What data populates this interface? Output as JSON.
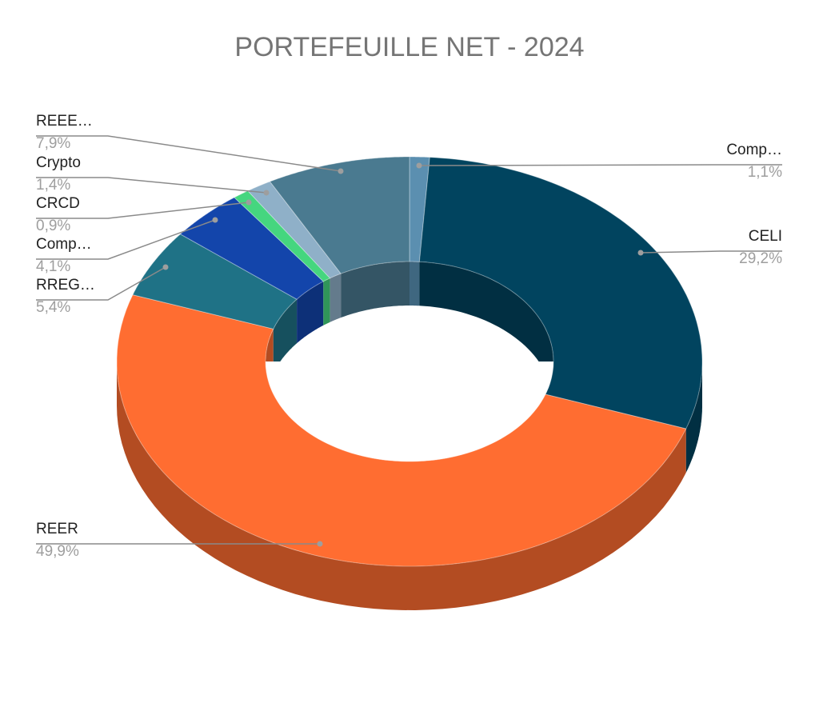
{
  "chart_data": {
    "type": "pie",
    "style": "3d-donut",
    "title": "PORTEFEUILLE NET - 2024",
    "slices": [
      {
        "label": "Comp…",
        "value": 1.1,
        "pct_label": "1,1%",
        "color": "#5b8fb0",
        "side": "#3f6780",
        "label_side": "right"
      },
      {
        "label": "CELI",
        "value": 29.2,
        "pct_label": "29,2%",
        "color": "#01445f",
        "side": "#012f42",
        "label_side": "right"
      },
      {
        "label": "REER",
        "value": 49.9,
        "pct_label": "49,9%",
        "color": "#ff6d31",
        "side": "#b34c22",
        "label_side": "left"
      },
      {
        "label": "RREG…",
        "value": 5.4,
        "pct_label": "5,4%",
        "color": "#1f7286",
        "side": "#16505e",
        "label_side": "left"
      },
      {
        "label": "Comp…",
        "value": 4.1,
        "pct_label": "4,1%",
        "color": "#1345ab",
        "side": "#0d3078",
        "label_side": "left"
      },
      {
        "label": "CRCD",
        "value": 0.9,
        "pct_label": "0,9%",
        "color": "#45d67f",
        "side": "#309659",
        "label_side": "left"
      },
      {
        "label": "Crypto",
        "value": 1.4,
        "pct_label": "1,4%",
        "color": "#8fb0c8",
        "side": "#647b8c",
        "label_side": "left"
      },
      {
        "label": "REEE…",
        "value": 7.9,
        "pct_label": "7,9%",
        "color": "#4a7a90",
        "side": "#345565",
        "label_side": "left"
      }
    ],
    "legend": "none"
  }
}
